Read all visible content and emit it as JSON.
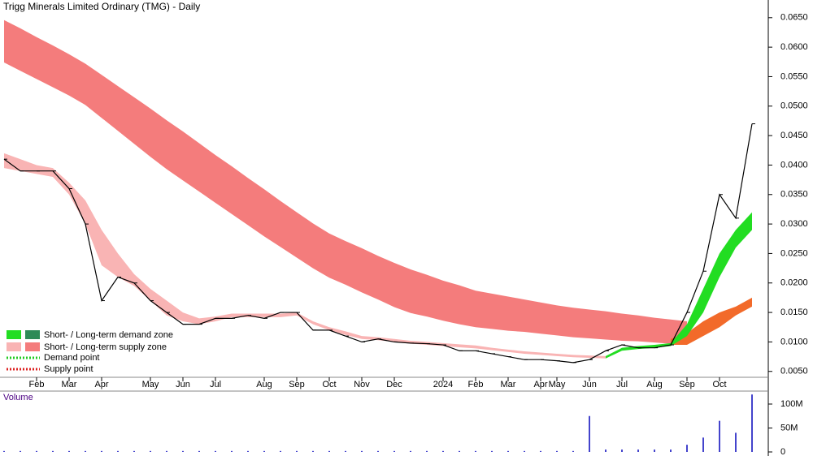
{
  "chart_data": {
    "type": "zones",
    "title": "Trigg Minerals Limited Ordinary (TMG) - Daily",
    "categories": [
      null,
      null,
      "Feb",
      null,
      "Mar",
      null,
      "Apr",
      null,
      null,
      "May",
      null,
      "Jun",
      null,
      "Jul",
      null,
      null,
      "Aug",
      null,
      "Sep",
      null,
      "Oct",
      null,
      "Nov",
      null,
      "Dec",
      null,
      null,
      "2024",
      null,
      "Feb",
      null,
      "Mar",
      null,
      "Apr",
      "May",
      null,
      "Jun",
      null,
      "Jul",
      null,
      "Aug",
      null,
      "Sep",
      null,
      "Oct",
      null,
      null
    ],
    "ylim": [
      0.004,
      0.068
    ],
    "yticks": [
      {
        "value": 0.005,
        "label": "0.0050"
      },
      {
        "value": 0.01,
        "label": "0.0100"
      },
      {
        "value": 0.015,
        "label": "0.0150"
      },
      {
        "value": 0.02,
        "label": "0.0200"
      },
      {
        "value": 0.025,
        "label": "0.0250"
      },
      {
        "value": 0.03,
        "label": "0.0300"
      },
      {
        "value": 0.035,
        "label": "0.0350"
      },
      {
        "value": 0.04,
        "label": "0.0400"
      },
      {
        "value": 0.045,
        "label": "0.0450"
      },
      {
        "value": 0.05,
        "label": "0.0500"
      },
      {
        "value": 0.055,
        "label": "0.0550"
      },
      {
        "value": 0.06,
        "label": "0.0600"
      },
      {
        "value": 0.065,
        "label": "0.0650"
      }
    ],
    "bands": [
      {
        "color": "#f47c7c",
        "upper": [
          0.0646,
          0.0632,
          0.0617,
          0.0603,
          0.0588,
          0.0572,
          0.0553,
          0.0534,
          0.0515,
          0.0496,
          0.0476,
          0.0457,
          0.0437,
          0.0417,
          0.0398,
          0.0378,
          0.0359,
          0.0339,
          0.032,
          0.0301,
          0.0284,
          0.0271,
          0.0259,
          0.0246,
          0.0234,
          0.0223,
          0.0214,
          0.0204,
          0.0196,
          0.0187,
          0.0182,
          0.0177,
          0.0172,
          0.0167,
          0.0162,
          0.0158,
          0.0155,
          0.0152,
          0.0148,
          0.0145,
          0.0141,
          0.0138,
          0.0135,
          null,
          null,
          null,
          null
        ],
        "lower": [
          0.0574,
          0.056,
          0.0546,
          0.0532,
          0.0518,
          0.0502,
          0.048,
          0.0458,
          0.0436,
          0.0414,
          0.0393,
          0.0374,
          0.0355,
          0.0336,
          0.0317,
          0.0298,
          0.0279,
          0.0261,
          0.0243,
          0.0225,
          0.0209,
          0.0197,
          0.0184,
          0.0172,
          0.0159,
          0.0149,
          0.0143,
          0.0136,
          0.013,
          0.0125,
          0.0122,
          0.0119,
          0.0117,
          0.0114,
          0.0111,
          0.0108,
          0.0106,
          0.0104,
          0.0102,
          0.0101,
          0.0099,
          0.0097,
          0.0095,
          null,
          null,
          null,
          null
        ]
      },
      {
        "color": "#f26a2a",
        "upper": [
          null,
          null,
          null,
          null,
          null,
          null,
          null,
          null,
          null,
          null,
          null,
          null,
          null,
          null,
          null,
          null,
          null,
          null,
          null,
          null,
          null,
          null,
          null,
          null,
          null,
          null,
          null,
          null,
          null,
          null,
          null,
          null,
          null,
          null,
          null,
          null,
          null,
          null,
          null,
          null,
          null,
          0.0105,
          0.0115,
          0.0135,
          0.015,
          0.016,
          0.0175
        ],
        "lower": [
          null,
          null,
          null,
          null,
          null,
          null,
          null,
          null,
          null,
          null,
          null,
          null,
          null,
          null,
          null,
          null,
          null,
          null,
          null,
          null,
          null,
          null,
          null,
          null,
          null,
          null,
          null,
          null,
          null,
          null,
          null,
          null,
          null,
          null,
          null,
          null,
          null,
          null,
          null,
          null,
          null,
          0.0095,
          0.0095,
          0.011,
          0.0125,
          0.0145,
          0.016
        ]
      },
      {
        "color": "#f9b4b4",
        "upper": [
          0.042,
          0.041,
          0.04,
          0.0395,
          0.037,
          0.034,
          0.029,
          0.025,
          0.0215,
          0.019,
          0.017,
          0.015,
          0.014,
          0.0143,
          0.0148,
          0.0148,
          0.0148,
          0.0148,
          0.015,
          0.0135,
          0.0125,
          0.0118,
          0.011,
          0.0108,
          0.0105,
          0.0102,
          0.01,
          0.0098,
          0.0096,
          0.0094,
          0.009,
          0.0087,
          0.0084,
          0.0082,
          0.008,
          0.0078,
          0.0077,
          0.0076,
          null,
          null,
          null,
          null,
          null,
          null,
          null,
          null,
          null
        ],
        "lower": [
          0.0395,
          0.039,
          0.0385,
          0.038,
          0.035,
          0.03,
          0.023,
          0.021,
          0.0195,
          0.017,
          0.0145,
          0.0135,
          0.013,
          0.0135,
          0.0142,
          0.0142,
          0.0142,
          0.0142,
          0.0145,
          0.013,
          0.012,
          0.0112,
          0.0105,
          0.0103,
          0.01,
          0.0097,
          0.0095,
          0.0093,
          0.0091,
          0.0089,
          0.0086,
          0.0083,
          0.008,
          0.0078,
          0.0076,
          0.0074,
          0.0073,
          0.0072,
          null,
          null,
          null,
          null,
          null,
          null,
          null,
          null,
          null
        ]
      },
      {
        "color": "#22dd22",
        "upper": [
          null,
          null,
          null,
          null,
          null,
          null,
          null,
          null,
          null,
          null,
          null,
          null,
          null,
          null,
          null,
          null,
          null,
          null,
          null,
          null,
          null,
          null,
          null,
          null,
          null,
          null,
          null,
          null,
          null,
          null,
          null,
          null,
          null,
          null,
          null,
          null,
          null,
          0.0076,
          0.009,
          0.0093,
          0.0095,
          0.0098,
          0.013,
          0.019,
          0.025,
          0.029,
          0.032
        ],
        "lower": [
          null,
          null,
          null,
          null,
          null,
          null,
          null,
          null,
          null,
          null,
          null,
          null,
          null,
          null,
          null,
          null,
          null,
          null,
          null,
          null,
          null,
          null,
          null,
          null,
          null,
          null,
          null,
          null,
          null,
          null,
          null,
          null,
          null,
          null,
          null,
          null,
          null,
          0.0072,
          0.0085,
          0.0088,
          0.009,
          0.0093,
          0.011,
          0.015,
          0.021,
          0.026,
          0.029
        ]
      }
    ],
    "series": [
      {
        "color": "#000000",
        "values": [
          0.041,
          0.039,
          0.039,
          0.039,
          0.036,
          0.03,
          0.017,
          0.021,
          0.02,
          0.017,
          0.015,
          0.013,
          0.013,
          0.014,
          0.014,
          0.0145,
          0.014,
          0.015,
          0.015,
          0.012,
          0.012,
          0.011,
          0.01,
          0.0105,
          0.01,
          0.0098,
          0.0097,
          0.0095,
          0.0085,
          0.0085,
          0.008,
          0.0075,
          0.007,
          0.007,
          0.0068,
          0.0065,
          0.007,
          0.0085,
          0.0095,
          0.009,
          0.009,
          0.0095,
          0.015,
          0.022,
          0.035,
          0.031,
          0.047
        ]
      }
    ],
    "volume": {
      "label": "Volume",
      "color": "#4444cc",
      "ylim": [
        0,
        122000000
      ],
      "yticks": [
        0,
        {
          "value": 50000000,
          "label": "50M"
        },
        {
          "value": 100000000,
          "label": "100M"
        }
      ],
      "values": [
        2000000,
        2000000,
        2000000,
        2000000,
        2000000,
        2000000,
        2000000,
        2000000,
        2000000,
        2000000,
        2000000,
        2000000,
        2000000,
        2000000,
        2000000,
        2000000,
        2000000,
        2000000,
        2000000,
        2000000,
        2000000,
        2000000,
        2000000,
        2000000,
        2000000,
        2000000,
        2000000,
        2000000,
        2000000,
        2000000,
        2000000,
        2000000,
        2000000,
        2000000,
        2000000,
        2000000,
        75000000,
        5000000,
        5000000,
        5000000,
        5000000,
        5000000,
        15000000,
        30000000,
        65000000,
        40000000,
        120000000
      ]
    },
    "legend": {
      "demand_zone": "Short- / Long-term demand zone",
      "supply_zone": "Short- / Long-term supply zone",
      "demand_point": "Demand point",
      "supply_point": "Supply point"
    }
  }
}
